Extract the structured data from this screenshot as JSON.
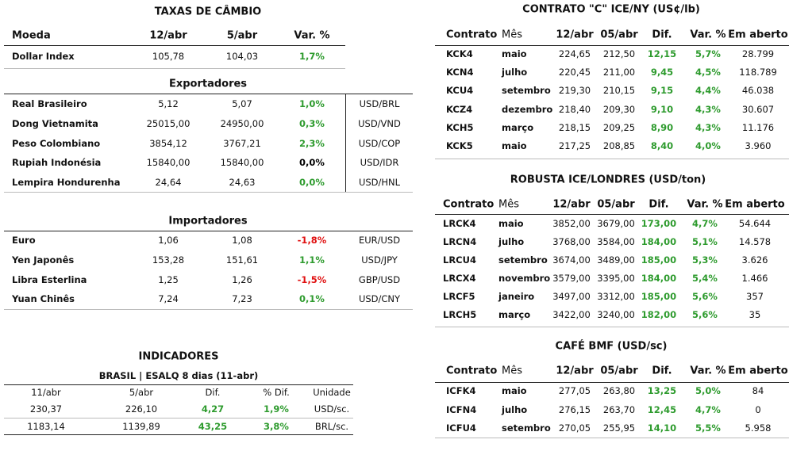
{
  "fx": {
    "title": "TAXAS DE CÂMBIO",
    "header": [
      "Moeda",
      "12/abr",
      "5/abr",
      "Var. %"
    ],
    "main_rows": [
      [
        "Dollar Index",
        "105,78",
        "104,03",
        "1,7%"
      ]
    ],
    "main_colors": [
      "#2e9b2e"
    ],
    "exporters": {
      "title": "Exportadores",
      "rows": [
        [
          "Real Brasileiro",
          "5,12",
          "5,07",
          "1,0%",
          "USD/BRL"
        ],
        [
          "Dong Vietnamita",
          "25015,00",
          "24950,00",
          "0,3%",
          "USD/VND"
        ],
        [
          "Peso Colombiano",
          "3854,12",
          "3767,21",
          "2,3%",
          "USD/COP"
        ],
        [
          "Rupiah Indonésia",
          "15840,00",
          "15840,00",
          "0,0%",
          "USD/IDR"
        ],
        [
          "Lempira Hondurenha",
          "24,64",
          "24,63",
          "0,0%",
          "USD/HNL"
        ]
      ],
      "colors": [
        "#2e9b2e",
        "#2e9b2e",
        "#2e9b2e",
        "#000000",
        "#2e9b2e"
      ]
    },
    "importers": {
      "title": "Importadores",
      "rows": [
        [
          "Euro",
          "1,06",
          "1,08",
          "-1,8%",
          "EUR/USD"
        ],
        [
          "Yen Japonês",
          "153,28",
          "151,61",
          "1,1%",
          "USD/JPY"
        ],
        [
          "Libra Esterlina",
          "1,25",
          "1,26",
          "-1,5%",
          "GBP/USD"
        ],
        [
          "Yuan Chinês",
          "7,24",
          "7,23",
          "0,1%",
          "USD/CNY"
        ]
      ],
      "colors": [
        "#e01010",
        "#2e9b2e",
        "#e01010",
        "#2e9b2e"
      ]
    }
  },
  "indicators": {
    "title": "INDICADORES",
    "subtitle": "BRASIL | ESALQ 8 dias (11-abr)",
    "header": [
      "11/abr",
      "5/abr",
      "Dif.",
      "% Dif.",
      "Unidade"
    ],
    "rows": [
      [
        "230,37",
        "226,10",
        "4,27",
        "1,9%",
        "USD/sc."
      ],
      [
        "1183,14",
        "1139,89",
        "43,25",
        "3,8%",
        "BRL/sc."
      ]
    ],
    "highlight_color": "#2e9b2e"
  },
  "futures": [
    {
      "title": "CONTRATO \"C\" ICE/NY (US¢/lb)",
      "header": [
        "Contrato",
        "Mês",
        "12/abr",
        "05/abr",
        "Dif.",
        "Var. %",
        "Em aberto"
      ],
      "rows": [
        [
          "KCK4",
          "maio",
          "224,65",
          "212,50",
          "12,15",
          "5,7%",
          "28.799"
        ],
        [
          "KCN4",
          "julho",
          "220,45",
          "211,00",
          "9,45",
          "4,5%",
          "118.789"
        ],
        [
          "KCU4",
          "setembro",
          "219,30",
          "210,15",
          "9,15",
          "4,4%",
          "46.038"
        ],
        [
          "KCZ4",
          "dezembro",
          "218,40",
          "209,30",
          "9,10",
          "4,3%",
          "30.607"
        ],
        [
          "KCH5",
          "março",
          "218,15",
          "209,25",
          "8,90",
          "4,3%",
          "11.176"
        ],
        [
          "KCK5",
          "maio",
          "217,25",
          "208,85",
          "8,40",
          "4,0%",
          "3.960"
        ]
      ],
      "highlight_color": "#2e9b2e"
    },
    {
      "title": "ROBUSTA ICE/LONDRES (USD/ton)",
      "header": [
        "Contrato",
        "Mês",
        "12/abr",
        "05/abr",
        "Dif.",
        "Var. %",
        "Em aberto"
      ],
      "rows": [
        [
          "LRCK4",
          "maio",
          "3852,00",
          "3679,00",
          "173,00",
          "4,7%",
          "54.644"
        ],
        [
          "LRCN4",
          "julho",
          "3768,00",
          "3584,00",
          "184,00",
          "5,1%",
          "14.578"
        ],
        [
          "LRCU4",
          "setembro",
          "3674,00",
          "3489,00",
          "185,00",
          "5,3%",
          "3.626"
        ],
        [
          "LRCX4",
          "novembro",
          "3579,00",
          "3395,00",
          "184,00",
          "5,4%",
          "1.466"
        ],
        [
          "LRCF5",
          "janeiro",
          "3497,00",
          "3312,00",
          "185,00",
          "5,6%",
          "357"
        ],
        [
          "LRCH5",
          "março",
          "3422,00",
          "3240,00",
          "182,00",
          "5,6%",
          "35"
        ]
      ],
      "highlight_color": "#2e9b2e"
    },
    {
      "title": "CAFÉ BMF (USD/sc)",
      "header": [
        "Contrato",
        "Mês",
        "12/abr",
        "05/abr",
        "Dif.",
        "Var. %",
        "Em aberto"
      ],
      "rows": [
        [
          "ICFK4",
          "maio",
          "277,05",
          "263,80",
          "13,25",
          "5,0%",
          "84"
        ],
        [
          "ICFN4",
          "julho",
          "276,15",
          "263,70",
          "12,45",
          "4,7%",
          "0"
        ],
        [
          "ICFU4",
          "setembro",
          "270,05",
          "255,95",
          "14,10",
          "5,5%",
          "5.958"
        ]
      ],
      "highlight_color": "#2e9b2e"
    }
  ]
}
